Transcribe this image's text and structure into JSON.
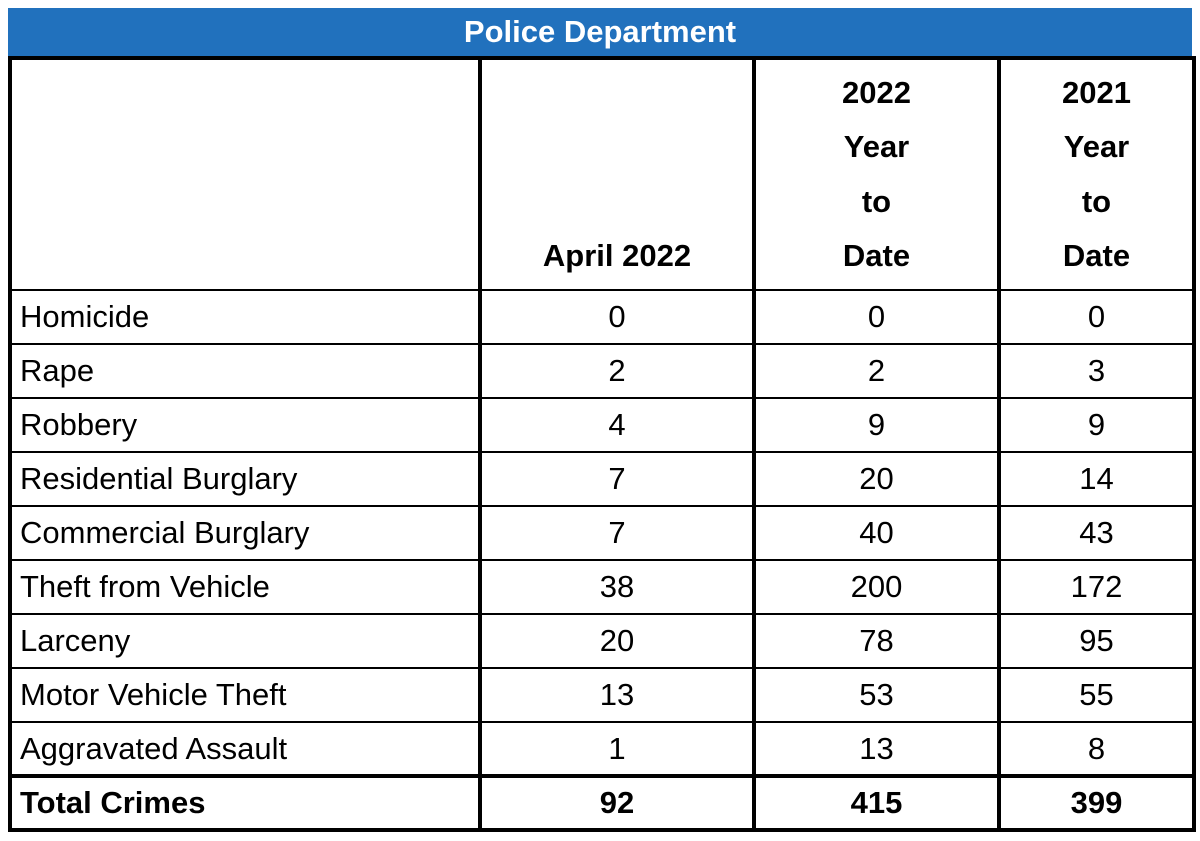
{
  "title": "Police Department",
  "colors": {
    "title_bg": "#2171bd",
    "title_text": "#ffffff",
    "border": "#000000",
    "cell_bg": "#ffffff"
  },
  "table": {
    "columns": [
      {
        "label": ""
      },
      {
        "label": "April 2022"
      },
      {
        "label": "2022\nYear\nto\nDate"
      },
      {
        "label": "2021\nYear\nto\nDate"
      }
    ],
    "rows": [
      {
        "label": "Homicide",
        "values": [
          "0",
          "0",
          "0"
        ]
      },
      {
        "label": "Rape",
        "values": [
          "2",
          "2",
          "3"
        ]
      },
      {
        "label": "Robbery",
        "values": [
          "4",
          "9",
          "9"
        ]
      },
      {
        "label": "Residential Burglary",
        "values": [
          "7",
          "20",
          "14"
        ]
      },
      {
        "label": "Commercial Burglary",
        "values": [
          "7",
          "40",
          "43"
        ]
      },
      {
        "label": "Theft from Vehicle",
        "values": [
          "38",
          "200",
          "172"
        ]
      },
      {
        "label": "Larceny",
        "values": [
          "20",
          "78",
          "95"
        ]
      },
      {
        "label": "Motor Vehicle Theft",
        "values": [
          "13",
          "53",
          "55"
        ]
      },
      {
        "label": "Aggravated Assault",
        "values": [
          "1",
          "13",
          "8"
        ]
      }
    ],
    "total_row": {
      "label": "Total Crimes",
      "values": [
        "92",
        "415",
        "399"
      ]
    }
  },
  "chart_data": {
    "type": "table",
    "title": "Police Department",
    "categories": [
      "Homicide",
      "Rape",
      "Robbery",
      "Residential Burglary",
      "Commercial Burglary",
      "Theft from Vehicle",
      "Larceny",
      "Motor Vehicle Theft",
      "Aggravated Assault",
      "Total Crimes"
    ],
    "series": [
      {
        "name": "April 2022",
        "values": [
          0,
          2,
          4,
          7,
          7,
          38,
          20,
          13,
          1,
          92
        ]
      },
      {
        "name": "2022 Year to Date",
        "values": [
          0,
          2,
          9,
          20,
          40,
          200,
          78,
          53,
          13,
          415
        ]
      },
      {
        "name": "2021 Year to Date",
        "values": [
          0,
          3,
          9,
          14,
          43,
          172,
          95,
          55,
          8,
          399
        ]
      }
    ]
  }
}
